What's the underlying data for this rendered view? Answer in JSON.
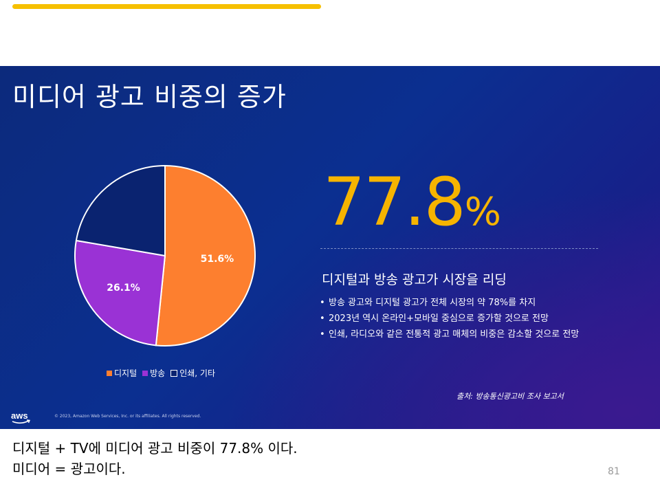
{
  "slide": {
    "title": "미디어 광고 비중의 증가",
    "headline_value": "77.8",
    "headline_unit": "%",
    "subhead": "디지털과 방송 광고가 시장을 리딩",
    "bullets": [
      "방송 광고와 디지털 광고가 전체 시장의 약 78%를 차지",
      "2023년 역시 온라인+모바일 중심으로 증가할 것으로 전망",
      "인쇄, 라디오와 같은 전통적 광고 매체의 비중은 감소할 것으로 전망"
    ],
    "source": "출처: 방송통신광고비 조사 보고서",
    "copyright": "© 2023, Amazon Web Services, Inc. or its affiliates. All rights reserved.",
    "logo_text": "aws",
    "accent_color": "#f6b400"
  },
  "chart_data": {
    "type": "pie",
    "categories": [
      "디지털",
      "방송",
      "인쇄, 기타"
    ],
    "values": [
      51.6,
      26.1,
      22.3
    ],
    "data_labels": [
      "51.6%",
      "26.1%",
      ""
    ],
    "colors": [
      "#fd7f2f",
      "#9a32d5",
      "#0a2370"
    ],
    "legend_position": "bottom"
  },
  "notes": {
    "line1": "디지털 + TV에 미디어 광고 비중이 77.8% 이다.",
    "line2": "미디어 = 광고이다."
  },
  "page_number": "81"
}
